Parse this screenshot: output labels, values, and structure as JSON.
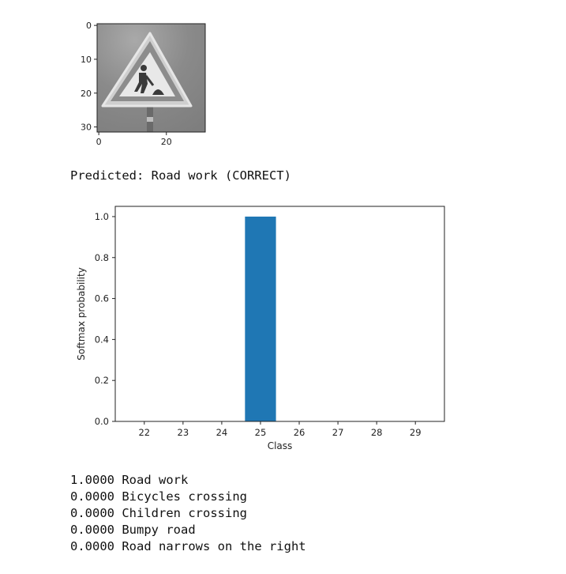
{
  "image_plot": {
    "xticks": [
      "0",
      "20"
    ],
    "yticks": [
      "0",
      "10",
      "20",
      "30"
    ],
    "content": "road-work-sign-icon"
  },
  "prediction": {
    "label": "Road work",
    "status": "CORRECT",
    "text": "Predicted: Road work (CORRECT)"
  },
  "chart_data": {
    "type": "bar",
    "categories": [
      "22",
      "23",
      "24",
      "25",
      "26",
      "27",
      "28",
      "29"
    ],
    "bars": [
      {
        "x": 25,
        "value": 1.0
      },
      {
        "x": 28,
        "value": 0.0
      },
      {
        "x": 29,
        "value": 0.0
      },
      {
        "x": 22,
        "value": 0.0
      },
      {
        "x": 24,
        "value": 0.0
      }
    ],
    "xlabel": "Class",
    "ylabel": "Softmax probability",
    "xlim": [
      21.25,
      29.75
    ],
    "ylim": [
      0,
      1.05
    ],
    "yticks": [
      "0.0",
      "0.2",
      "0.4",
      "0.6",
      "0.8",
      "1.0"
    ],
    "bar_color": "#1f77b4",
    "grid": false
  },
  "top_predictions": [
    {
      "prob": "1.0000",
      "label": "Road work"
    },
    {
      "prob": "0.0000",
      "label": "Bicycles crossing"
    },
    {
      "prob": "0.0000",
      "label": "Children crossing"
    },
    {
      "prob": "0.0000",
      "label": "Bumpy road"
    },
    {
      "prob": "0.0000",
      "label": "Road narrows on the right"
    }
  ]
}
